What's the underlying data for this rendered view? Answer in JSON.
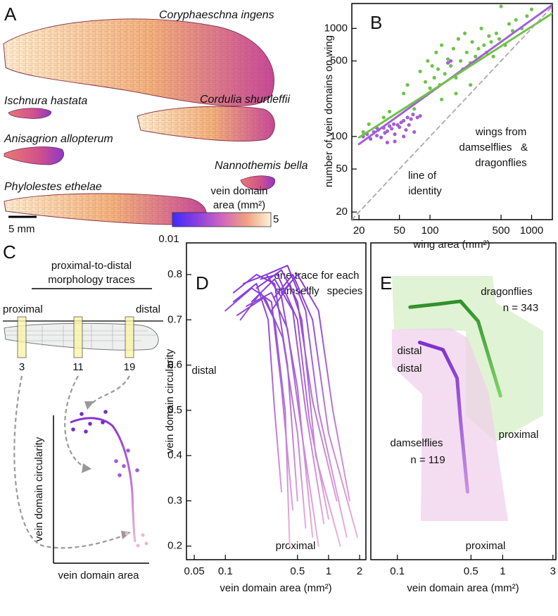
{
  "panel_labels": [
    "A",
    "B",
    "C",
    "D",
    "E"
  ],
  "panel_a": {
    "species": [
      "Coryphaeschna ingens",
      "Ischnura hastata",
      "Cordulia shurtleffii",
      "Anisagrion allopterum",
      "Nannothemis bella",
      "Phylolestes ethelae"
    ],
    "scale_bar": "5 mm",
    "colorbar": {
      "title": [
        "vein domain",
        "area (mm²)"
      ],
      "ticks": [
        0.01,
        5
      ],
      "colors": [
        "#3d2cff",
        "#8a3fe0",
        "#d065c0",
        "#f0a080",
        "#fff2d8"
      ]
    }
  },
  "panel_c": {
    "title": [
      "proximal-to-distal",
      "morphology traces"
    ],
    "proximal": "proximal",
    "distal": "distal",
    "positions": [
      "3",
      "11",
      "19"
    ],
    "y_label": "vein domain circularity",
    "x_label": "vein domain area"
  },
  "chart_data": [
    {
      "type": "scatter",
      "xlabel": "wing area (mm²)",
      "ylabel": "number of vein domains on wing",
      "xlog": true,
      "ylog": true,
      "xlim": [
        17,
        1600
      ],
      "ylim": [
        17,
        1700
      ],
      "xticks": [
        20,
        50,
        100,
        500,
        1000
      ],
      "yticks": [
        20,
        50,
        100,
        500,
        1000
      ],
      "annotations": [
        "wings from",
        "&",
        "line of",
        "identity"
      ],
      "series": [
        {
          "name": "damselflies",
          "color": "#a35fd6",
          "x": [
            22,
            24,
            26,
            28,
            30,
            31,
            33,
            35,
            36,
            38,
            40,
            42,
            44,
            45,
            48,
            50,
            52,
            55,
            58,
            60,
            62,
            65,
            68,
            70,
            75,
            80,
            45,
            38,
            55,
            150,
            160,
            30
          ],
          "values": [
            100,
            105,
            95,
            110,
            102,
            115,
            98,
            120,
            108,
            112,
            125,
            118,
            130,
            105,
            128,
            122,
            135,
            140,
            115,
            150,
            128,
            145,
            160,
            110,
            150,
            155,
            90,
            88,
            100,
            480,
            500,
            120
          ]
        },
        {
          "name": "dragonflies",
          "color": "#6fc24b",
          "x": [
            22,
            25,
            35,
            40,
            55,
            60,
            70,
            80,
            90,
            95,
            100,
            105,
            110,
            115,
            120,
            125,
            130,
            140,
            150,
            160,
            170,
            180,
            190,
            200,
            210,
            220,
            230,
            250,
            260,
            280,
            300,
            320,
            340,
            360,
            380,
            400,
            420,
            450,
            480,
            500,
            550,
            600,
            650,
            700,
            800,
            900,
            1000,
            180,
            250,
            130
          ],
          "values": [
            110,
            130,
            150,
            170,
            250,
            300,
            180,
            400,
            320,
            500,
            280,
            450,
            350,
            600,
            420,
            300,
            700,
            380,
            520,
            450,
            650,
            350,
            800,
            500,
            420,
            900,
            600,
            480,
            750,
            550,
            650,
            1000,
            700,
            600,
            850,
            750,
            550,
            900,
            800,
            1600,
            700,
            1100,
            950,
            1200,
            1000,
            1300,
            1500,
            250,
            300,
            220
          ]
        },
        {
          "color": "#a35fd6",
          "mark": "line",
          "x": [
            20,
            1600
          ],
          "values": [
            85,
            1650
          ]
        },
        {
          "color": "#6fc24b",
          "mark": "line",
          "x": [
            20,
            1600
          ],
          "values": [
            98,
            1380
          ]
        },
        {
          "color": "#aaaaaa",
          "mark": "line",
          "dash": true,
          "x": [
            17,
            1600
          ],
          "values": [
            17,
            1600
          ]
        }
      ]
    },
    {
      "type": "line",
      "xlabel": "vein domain area (mm²)",
      "ylabel": "vein domain circularity",
      "xlog": true,
      "xlim": [
        0.042,
        2.3
      ],
      "ylim": [
        0.17,
        0.87
      ],
      "xticks": [
        0.05,
        0.1,
        0.5,
        1,
        2
      ],
      "yticks": [
        0.2,
        0.3,
        0.4,
        0.5,
        0.6,
        0.7,
        0.8
      ],
      "gradient": [
        "#7b2fd8",
        "#f0b4d8"
      ],
      "annotations": [
        "one trace for each",
        "damselfly",
        "species",
        "distal",
        "proximal"
      ],
      "series": [
        {
          "x": [
            0.12,
            0.2,
            0.3,
            0.4,
            0.5
          ],
          "values": [
            0.76,
            0.8,
            0.78,
            0.6,
            0.3
          ]
        },
        {
          "x": [
            0.15,
            0.25,
            0.35,
            0.5,
            0.7
          ],
          "values": [
            0.78,
            0.8,
            0.75,
            0.55,
            0.22
          ]
        },
        {
          "x": [
            0.18,
            0.3,
            0.45,
            0.6,
            0.9
          ],
          "values": [
            0.74,
            0.79,
            0.72,
            0.5,
            0.25
          ]
        },
        {
          "x": [
            0.1,
            0.18,
            0.28,
            0.35,
            0.45
          ],
          "values": [
            0.72,
            0.77,
            0.74,
            0.55,
            0.28
          ]
        },
        {
          "x": [
            0.2,
            0.35,
            0.5,
            0.7,
            1.2
          ],
          "values": [
            0.77,
            0.81,
            0.74,
            0.52,
            0.3
          ]
        },
        {
          "x": [
            0.25,
            0.4,
            0.6,
            0.8,
            1.5
          ],
          "values": [
            0.8,
            0.82,
            0.72,
            0.5,
            0.22
          ]
        },
        {
          "x": [
            0.14,
            0.22,
            0.3,
            0.38,
            0.42
          ],
          "values": [
            0.7,
            0.76,
            0.7,
            0.5,
            0.2
          ]
        },
        {
          "x": [
            0.3,
            0.45,
            0.7,
            1.0,
            1.9
          ],
          "values": [
            0.75,
            0.8,
            0.7,
            0.45,
            0.22
          ]
        },
        {
          "x": [
            0.16,
            0.28,
            0.4,
            0.55,
            0.8
          ],
          "values": [
            0.73,
            0.76,
            0.68,
            0.45,
            0.2
          ]
        },
        {
          "x": [
            0.22,
            0.32,
            0.5,
            0.65,
            1.0
          ],
          "values": [
            0.79,
            0.8,
            0.7,
            0.48,
            0.26
          ]
        },
        {
          "x": [
            0.12,
            0.2,
            0.26,
            0.3,
            0.35
          ],
          "values": [
            0.74,
            0.78,
            0.7,
            0.5,
            0.32
          ]
        },
        {
          "x": [
            0.35,
            0.5,
            0.8,
            1.1,
            1.6
          ],
          "values": [
            0.76,
            0.8,
            0.72,
            0.5,
            0.3
          ]
        },
        {
          "x": [
            0.13,
            0.24,
            0.36,
            0.5,
            0.6
          ],
          "values": [
            0.71,
            0.75,
            0.66,
            0.45,
            0.24
          ]
        },
        {
          "x": [
            0.28,
            0.42,
            0.55,
            0.75,
            1.3
          ],
          "values": [
            0.72,
            0.78,
            0.7,
            0.4,
            0.2
          ]
        }
      ]
    },
    {
      "type": "line",
      "xlabel": "vein domain area (mm²)",
      "xlog": true,
      "xlim": [
        0.056,
        3.2
      ],
      "ylim": [
        0.17,
        0.87
      ],
      "xticks": [
        0.1,
        0.5,
        1,
        3
      ],
      "annotations": [
        "n = 343",
        "distal",
        "distal",
        "proximal",
        "n = 119",
        "proximal"
      ],
      "series": [
        {
          "name": "dragonflies",
          "color": "#6fc24b",
          "gradient": [
            "#2f8f2a",
            "#7fd36a"
          ],
          "x": [
            0.132,
            0.25,
            0.398,
            0.584,
            0.953
          ],
          "values": [
            0.728,
            0.735,
            0.741,
            0.697,
            0.532
          ]
        },
        {
          "name": "damselflies",
          "color": "#a35fd6",
          "gradient": [
            "#7d2fcf",
            "#c792e3"
          ],
          "x": [
            0.163,
            0.271,
            0.369,
            0.398,
            0.464
          ],
          "values": [
            0.65,
            0.634,
            0.571,
            0.477,
            0.32
          ]
        }
      ]
    }
  ]
}
